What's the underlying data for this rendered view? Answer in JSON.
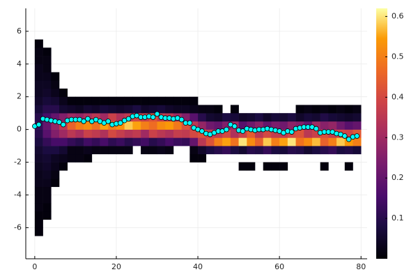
{
  "chart_data": {
    "type": "heatmap-scatter",
    "xlim": [
      -2.2,
      81.5
    ],
    "ylim": [
      -7.9,
      7.4
    ],
    "xticks": [
      0,
      20,
      40,
      60,
      80
    ],
    "yticks": [
      -6,
      -4,
      -2,
      0,
      2,
      4,
      6
    ],
    "grid": true,
    "colormap": "inferno",
    "clim": [
      0,
      0.62
    ],
    "cticks": [
      0.1,
      0.2,
      0.3,
      0.4,
      0.5,
      0.6
    ],
    "xbins": [
      0,
      2,
      4,
      6,
      8,
      10,
      12,
      14,
      16,
      18,
      20,
      22,
      24,
      26,
      28,
      30,
      32,
      34,
      36,
      38,
      40,
      42,
      44,
      46,
      48,
      50,
      52,
      54,
      56,
      58,
      60,
      62,
      64,
      66,
      68,
      70,
      72,
      74,
      76,
      78,
      80
    ],
    "ybins": [
      -6.5,
      -6,
      -5.5,
      -5,
      -4.5,
      -4,
      -3.5,
      -3,
      -2.5,
      -2,
      -1.5,
      -1,
      -0.5,
      0,
      0.5,
      1,
      1.5,
      2,
      2.5,
      3,
      3.5,
      4,
      4.5,
      5,
      5.5
    ],
    "z": [
      [
        0.01,
        null,
        null,
        null,
        null,
        null,
        null,
        null,
        null,
        null,
        null,
        null,
        null,
        null,
        null,
        null,
        null,
        null,
        null,
        null,
        null,
        null,
        null,
        null,
        null,
        null,
        null,
        null,
        null,
        null,
        null,
        null,
        null,
        null,
        null,
        null,
        null,
        null,
        null,
        null
      ],
      [
        0.01,
        null,
        null,
        null,
        null,
        null,
        null,
        null,
        null,
        null,
        null,
        null,
        null,
        null,
        null,
        null,
        null,
        null,
        null,
        null,
        null,
        null,
        null,
        null,
        null,
        null,
        null,
        null,
        null,
        null,
        null,
        null,
        null,
        null,
        null,
        null,
        null,
        null,
        null,
        null
      ],
      [
        0.01,
        0.01,
        null,
        null,
        null,
        null,
        null,
        null,
        null,
        null,
        null,
        null,
        null,
        null,
        null,
        null,
        null,
        null,
        null,
        null,
        null,
        null,
        null,
        null,
        null,
        null,
        null,
        null,
        null,
        null,
        null,
        null,
        null,
        null,
        null,
        null,
        null,
        null,
        null,
        null
      ],
      [
        0.02,
        0.01,
        null,
        null,
        null,
        null,
        null,
        null,
        null,
        null,
        null,
        null,
        null,
        null,
        null,
        null,
        null,
        null,
        null,
        null,
        null,
        null,
        null,
        null,
        null,
        null,
        null,
        null,
        null,
        null,
        null,
        null,
        null,
        null,
        null,
        null,
        null,
        null,
        null,
        null
      ],
      [
        0.02,
        0.02,
        null,
        null,
        null,
        null,
        null,
        null,
        null,
        null,
        null,
        null,
        null,
        null,
        null,
        null,
        null,
        null,
        null,
        null,
        null,
        null,
        null,
        null,
        null,
        null,
        null,
        null,
        null,
        null,
        null,
        null,
        null,
        null,
        null,
        null,
        null,
        null,
        null,
        null
      ],
      [
        0.02,
        0.02,
        null,
        null,
        null,
        null,
        null,
        null,
        null,
        null,
        null,
        null,
        null,
        null,
        null,
        null,
        null,
        null,
        null,
        null,
        null,
        null,
        null,
        null,
        null,
        null,
        null,
        null,
        null,
        null,
        null,
        null,
        null,
        null,
        null,
        null,
        null,
        null,
        null,
        null
      ],
      [
        0.03,
        0.03,
        0.01,
        null,
        null,
        null,
        null,
        null,
        null,
        null,
        null,
        null,
        null,
        null,
        null,
        null,
        null,
        null,
        null,
        null,
        null,
        null,
        null,
        null,
        null,
        null,
        null,
        null,
        null,
        null,
        null,
        null,
        null,
        null,
        null,
        null,
        null,
        null,
        null,
        null
      ],
      [
        0.03,
        0.04,
        0.02,
        null,
        null,
        null,
        null,
        null,
        null,
        null,
        null,
        null,
        null,
        null,
        null,
        null,
        null,
        null,
        null,
        null,
        null,
        null,
        null,
        null,
        null,
        null,
        null,
        null,
        null,
        null,
        null,
        null,
        null,
        null,
        null,
        null,
        null,
        null,
        null,
        null
      ],
      [
        0.04,
        0.05,
        0.03,
        0.01,
        null,
        null,
        null,
        null,
        null,
        null,
        null,
        null,
        null,
        null,
        null,
        null,
        null,
        null,
        null,
        null,
        null,
        null,
        null,
        null,
        null,
        0.01,
        0.01,
        null,
        0.01,
        0.01,
        0.01,
        null,
        null,
        null,
        null,
        0.01,
        null,
        null,
        0.01,
        null
      ],
      [
        0.05,
        0.06,
        0.04,
        0.03,
        0.02,
        0.02,
        0.01,
        null,
        null,
        null,
        null,
        null,
        null,
        null,
        null,
        null,
        null,
        null,
        null,
        0.01,
        0.01,
        null,
        null,
        null,
        null,
        null,
        null,
        null,
        null,
        null,
        null,
        null,
        null,
        null,
        null,
        null,
        null,
        null,
        null,
        null
      ],
      [
        0.06,
        0.08,
        0.08,
        0.06,
        0.02,
        0.02,
        0.03,
        0.02,
        0.02,
        0.02,
        0.02,
        0.02,
        null,
        0.02,
        0.02,
        0.03,
        0.02,
        null,
        null,
        0.02,
        0.05,
        0.08,
        0.1,
        0.12,
        0.08,
        0.06,
        0.1,
        0.09,
        0.12,
        0.08,
        0.07,
        0.1,
        0.09,
        0.06,
        0.08,
        0.1,
        0.12,
        0.08,
        0.09,
        0.07
      ],
      [
        0.08,
        0.12,
        0.15,
        0.15,
        0.12,
        0.1,
        0.14,
        0.12,
        0.15,
        0.11,
        0.13,
        0.1,
        0.12,
        0.14,
        0.1,
        0.12,
        0.15,
        0.13,
        0.12,
        0.2,
        0.35,
        0.42,
        0.5,
        0.55,
        0.48,
        0.6,
        0.52,
        0.45,
        0.58,
        0.5,
        0.55,
        0.6,
        0.48,
        0.52,
        0.57,
        0.45,
        0.5,
        0.58,
        0.54,
        0.5
      ],
      [
        0.1,
        0.18,
        0.25,
        0.3,
        0.35,
        0.32,
        0.38,
        0.36,
        0.33,
        0.4,
        0.37,
        0.34,
        0.36,
        0.3,
        0.38,
        0.35,
        0.33,
        0.37,
        0.36,
        0.4,
        0.42,
        0.38,
        0.36,
        0.4,
        0.33,
        0.38,
        0.44,
        0.35,
        0.4,
        0.37,
        0.36,
        0.4,
        0.42,
        0.35,
        0.38,
        0.41,
        0.37,
        0.4,
        0.39,
        0.43
      ],
      [
        0.12,
        0.2,
        0.28,
        0.35,
        0.45,
        0.5,
        0.52,
        0.48,
        0.55,
        0.5,
        0.53,
        0.58,
        0.55,
        0.5,
        0.47,
        0.52,
        0.54,
        0.49,
        0.42,
        0.35,
        0.28,
        0.22,
        0.2,
        0.25,
        0.3,
        0.18,
        0.22,
        0.26,
        0.2,
        0.24,
        0.22,
        0.27,
        0.25,
        0.2,
        0.3,
        0.26,
        0.28,
        0.22,
        0.18,
        0.2
      ],
      [
        0.1,
        0.15,
        0.2,
        0.25,
        0.3,
        0.28,
        0.32,
        0.35,
        0.3,
        0.38,
        0.33,
        0.36,
        0.4,
        0.38,
        0.42,
        0.37,
        0.35,
        0.3,
        0.25,
        0.18,
        0.1,
        0.06,
        0.05,
        0.08,
        0.07,
        0.05,
        0.06,
        0.08,
        0.05,
        0.07,
        0.06,
        0.08,
        0.05,
        0.07,
        0.06,
        0.09,
        0.07,
        0.06,
        0.05,
        0.06
      ],
      [
        0.07,
        0.1,
        0.1,
        0.06,
        0.05,
        0.04,
        0.06,
        0.05,
        0.07,
        0.06,
        0.05,
        0.06,
        0.08,
        0.05,
        0.06,
        0.07,
        0.05,
        0.04,
        0.04,
        0.03,
        0.02,
        0.02,
        0.01,
        null,
        0.01,
        null,
        null,
        null,
        null,
        null,
        null,
        null,
        0.01,
        0.02,
        0.01,
        0.02,
        0.01,
        0.02,
        0.01,
        0.02
      ],
      [
        0.05,
        0.07,
        0.06,
        0.03,
        0.01,
        0.01,
        0.01,
        0.01,
        0.01,
        0.01,
        0.01,
        0.01,
        0.01,
        0.01,
        0.01,
        0.01,
        0.01,
        0.01,
        0.01,
        0.01,
        null,
        null,
        null,
        null,
        null,
        null,
        null,
        null,
        null,
        null,
        null,
        null,
        null,
        null,
        null,
        null,
        null,
        null,
        null,
        null
      ],
      [
        0.04,
        0.05,
        0.03,
        0.01,
        null,
        null,
        null,
        null,
        null,
        null,
        null,
        null,
        null,
        null,
        null,
        null,
        null,
        null,
        null,
        null,
        null,
        null,
        null,
        null,
        null,
        null,
        null,
        null,
        null,
        null,
        null,
        null,
        null,
        null,
        null,
        null,
        null,
        null,
        null,
        null
      ],
      [
        0.04,
        0.04,
        0.02,
        null,
        null,
        null,
        null,
        null,
        null,
        null,
        null,
        null,
        null,
        null,
        null,
        null,
        null,
        null,
        null,
        null,
        null,
        null,
        null,
        null,
        null,
        null,
        null,
        null,
        null,
        null,
        null,
        null,
        null,
        null,
        null,
        null,
        null,
        null,
        null,
        null
      ],
      [
        0.03,
        0.03,
        0.01,
        null,
        null,
        null,
        null,
        null,
        null,
        null,
        null,
        null,
        null,
        null,
        null,
        null,
        null,
        null,
        null,
        null,
        null,
        null,
        null,
        null,
        null,
        null,
        null,
        null,
        null,
        null,
        null,
        null,
        null,
        null,
        null,
        null,
        null,
        null,
        null,
        null
      ],
      [
        0.03,
        0.02,
        null,
        null,
        null,
        null,
        null,
        null,
        null,
        null,
        null,
        null,
        null,
        null,
        null,
        null,
        null,
        null,
        null,
        null,
        null,
        null,
        null,
        null,
        null,
        null,
        null,
        null,
        null,
        null,
        null,
        null,
        null,
        null,
        null,
        null,
        null,
        null,
        null,
        null
      ],
      [
        0.02,
        0.02,
        null,
        null,
        null,
        null,
        null,
        null,
        null,
        null,
        null,
        null,
        null,
        null,
        null,
        null,
        null,
        null,
        null,
        null,
        null,
        null,
        null,
        null,
        null,
        null,
        null,
        null,
        null,
        null,
        null,
        null,
        null,
        null,
        null,
        null,
        null,
        null,
        null,
        null
      ],
      [
        0.02,
        0.01,
        null,
        null,
        null,
        null,
        null,
        null,
        null,
        null,
        null,
        null,
        null,
        null,
        null,
        null,
        null,
        null,
        null,
        null,
        null,
        null,
        null,
        null,
        null,
        null,
        null,
        null,
        null,
        null,
        null,
        null,
        null,
        null,
        null,
        null,
        null,
        null,
        null,
        null
      ],
      [
        0.01,
        null,
        null,
        null,
        null,
        null,
        null,
        null,
        null,
        null,
        null,
        null,
        null,
        null,
        null,
        null,
        null,
        null,
        null,
        null,
        null,
        null,
        null,
        null,
        null,
        null,
        null,
        null,
        null,
        null,
        null,
        null,
        null,
        null,
        null,
        null,
        null,
        null,
        null,
        null
      ]
    ],
    "series": [
      {
        "color": "#00ffff",
        "x": [
          0,
          1,
          2,
          3,
          4,
          5,
          6,
          7,
          8,
          9,
          10,
          11,
          12,
          13,
          14,
          15,
          16,
          17,
          18,
          19,
          20,
          21,
          22,
          23,
          24,
          25,
          26,
          27,
          28,
          29,
          30,
          31,
          32,
          33,
          34,
          35,
          36,
          37,
          38,
          39,
          40,
          41,
          42,
          43,
          44,
          45,
          46,
          47,
          48,
          49,
          50,
          51,
          52,
          53,
          54,
          55,
          56,
          57,
          58,
          59,
          60,
          61,
          62,
          63,
          64,
          65,
          66,
          67,
          68,
          69,
          70,
          71,
          72,
          73,
          74,
          75,
          76,
          77,
          78,
          79
        ],
        "values": [
          0.2,
          0.3,
          0.65,
          0.6,
          0.55,
          0.5,
          0.45,
          0.3,
          0.55,
          0.6,
          0.6,
          0.6,
          0.5,
          0.65,
          0.5,
          0.6,
          0.5,
          0.4,
          0.5,
          0.3,
          0.35,
          0.4,
          0.55,
          0.65,
          0.8,
          0.85,
          0.75,
          0.75,
          0.8,
          0.75,
          0.95,
          0.75,
          0.7,
          0.7,
          0.65,
          0.7,
          0.6,
          0.4,
          0.4,
          0.1,
          0.0,
          -0.1,
          -0.25,
          -0.3,
          -0.2,
          -0.1,
          -0.1,
          0.0,
          0.3,
          0.2,
          -0.05,
          -0.1,
          0.05,
          0.0,
          -0.05,
          0.0,
          0.0,
          0.05,
          0.0,
          -0.05,
          -0.1,
          -0.2,
          -0.1,
          -0.15,
          0.05,
          0.1,
          0.15,
          0.15,
          0.15,
          0.05,
          -0.2,
          -0.15,
          -0.15,
          -0.15,
          -0.25,
          -0.3,
          -0.4,
          -0.6,
          -0.45,
          -0.4
        ]
      }
    ]
  }
}
